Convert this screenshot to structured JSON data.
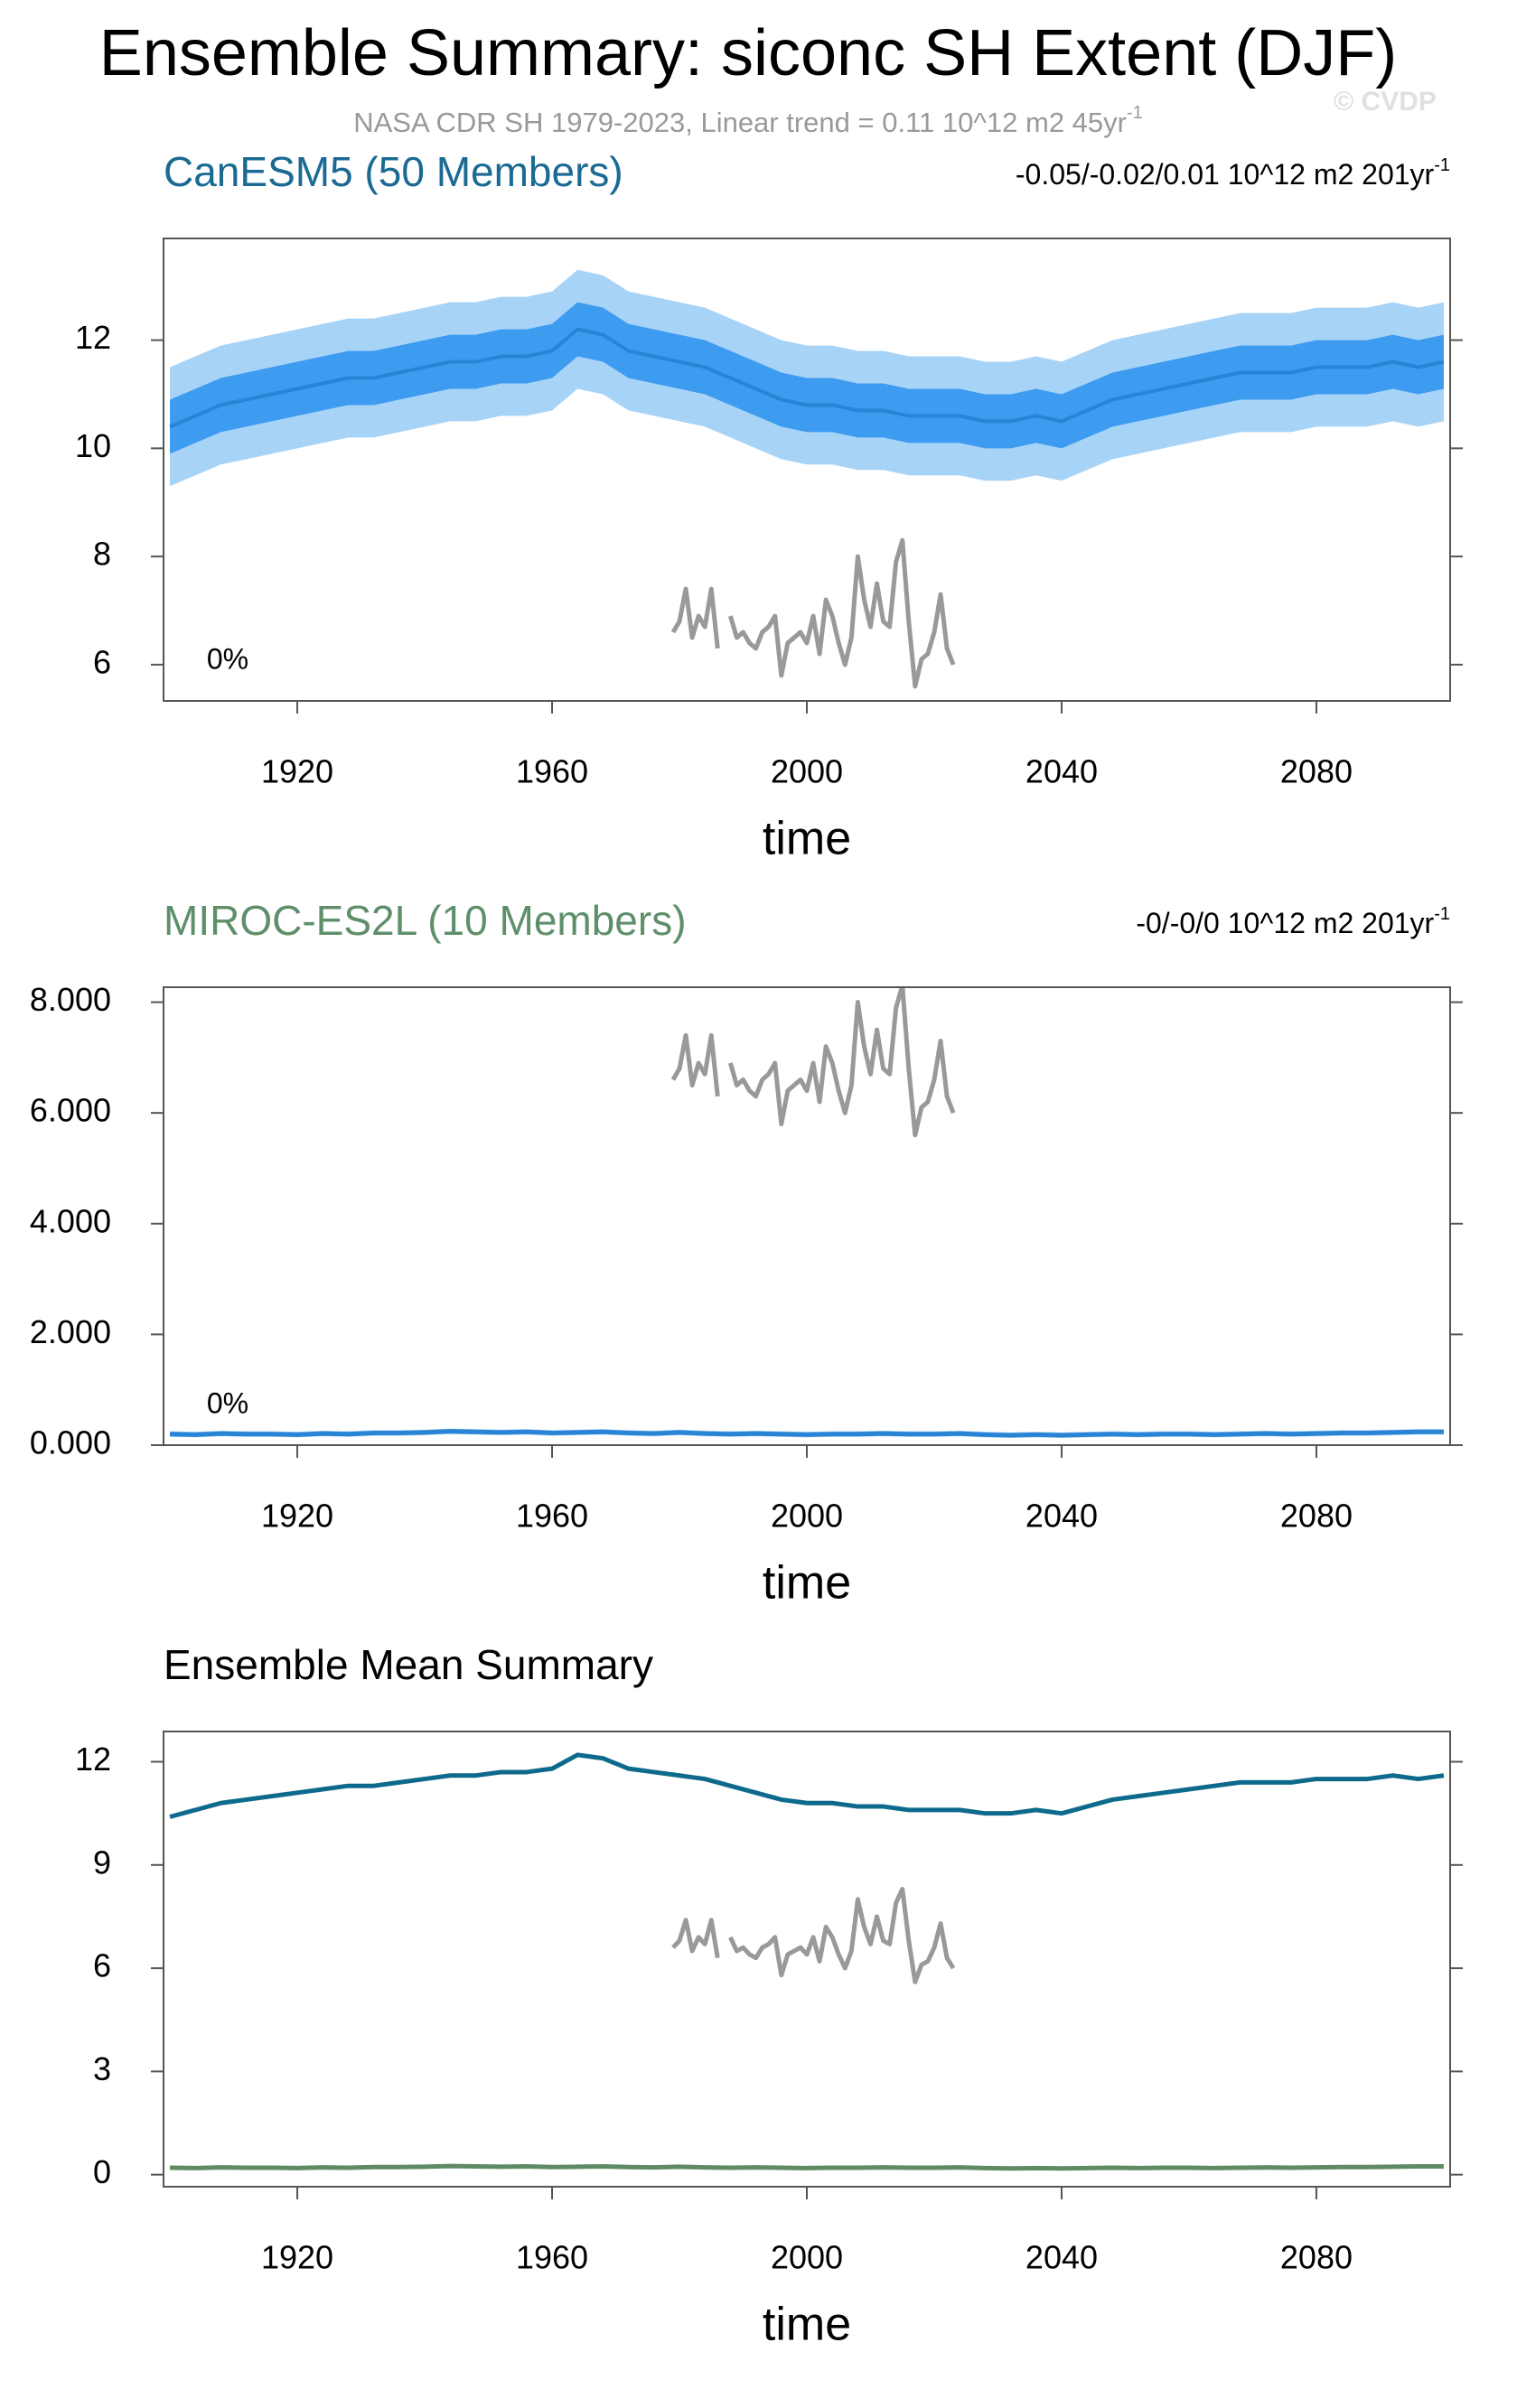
{
  "title": "Ensemble Summary: siconc SH Extent (DJF)",
  "subtitle": {
    "text": "NASA CDR SH 1979-2023, Linear trend = 0.11 10^12 m2 45yr",
    "sup": "-1"
  },
  "copyright": "© CVDP",
  "chart_data": [
    {
      "type": "line",
      "title": "CanESM5 (50 Members)",
      "title_color": "#1a6a94",
      "trend": {
        "text": "-0.05/-0.02/0.01 10^12 m2 201yr",
        "sup": "-1"
      },
      "annotation": "0%",
      "xlabel": "time",
      "xlim": [
        1899,
        2101
      ],
      "xticks": [
        1920,
        1960,
        2000,
        2040,
        2080
      ],
      "ylim": [
        5.33,
        13.88
      ],
      "yticks": [
        6,
        8,
        10,
        12
      ],
      "x": [
        1900,
        1904,
        1908,
        1912,
        1916,
        1920,
        1924,
        1928,
        1932,
        1936,
        1940,
        1944,
        1948,
        1952,
        1956,
        1960,
        1964,
        1968,
        1972,
        1976,
        1980,
        1984,
        1988,
        1992,
        1996,
        2000,
        2004,
        2008,
        2012,
        2016,
        2020,
        2024,
        2028,
        2032,
        2036,
        2040,
        2044,
        2048,
        2052,
        2056,
        2060,
        2064,
        2068,
        2072,
        2076,
        2080,
        2084,
        2088,
        2092,
        2096,
        2100
      ],
      "bands": [
        {
          "color": "#a7d3f7",
          "lower": [
            9.3,
            9.5,
            9.7,
            9.8,
            9.9,
            10.0,
            10.1,
            10.2,
            10.2,
            10.3,
            10.4,
            10.5,
            10.5,
            10.6,
            10.6,
            10.7,
            11.1,
            11.0,
            10.7,
            10.6,
            10.5,
            10.4,
            10.2,
            10.0,
            9.8,
            9.7,
            9.7,
            9.6,
            9.6,
            9.5,
            9.5,
            9.5,
            9.4,
            9.4,
            9.5,
            9.4,
            9.6,
            9.8,
            9.9,
            10.0,
            10.1,
            10.2,
            10.3,
            10.3,
            10.3,
            10.4,
            10.4,
            10.4,
            10.5,
            10.4,
            10.5
          ],
          "upper": [
            11.5,
            11.7,
            11.9,
            12.0,
            12.1,
            12.2,
            12.3,
            12.4,
            12.4,
            12.5,
            12.6,
            12.7,
            12.7,
            12.8,
            12.8,
            12.9,
            13.3,
            13.2,
            12.9,
            12.8,
            12.7,
            12.6,
            12.4,
            12.2,
            12.0,
            11.9,
            11.9,
            11.8,
            11.8,
            11.7,
            11.7,
            11.7,
            11.6,
            11.6,
            11.7,
            11.6,
            11.8,
            12.0,
            12.1,
            12.2,
            12.3,
            12.4,
            12.5,
            12.5,
            12.5,
            12.6,
            12.6,
            12.6,
            12.7,
            12.6,
            12.7
          ]
        },
        {
          "color": "#3d9bf0",
          "lower": [
            9.9,
            10.1,
            10.3,
            10.4,
            10.5,
            10.6,
            10.7,
            10.8,
            10.8,
            10.9,
            11.0,
            11.1,
            11.1,
            11.2,
            11.2,
            11.3,
            11.7,
            11.6,
            11.3,
            11.2,
            11.1,
            11.0,
            10.8,
            10.6,
            10.4,
            10.3,
            10.3,
            10.2,
            10.2,
            10.1,
            10.1,
            10.1,
            10.0,
            10.0,
            10.1,
            10.0,
            10.2,
            10.4,
            10.5,
            10.6,
            10.7,
            10.8,
            10.9,
            10.9,
            10.9,
            11.0,
            11.0,
            11.0,
            11.1,
            11.0,
            11.1
          ],
          "upper": [
            10.9,
            11.1,
            11.3,
            11.4,
            11.5,
            11.6,
            11.7,
            11.8,
            11.8,
            11.9,
            12.0,
            12.1,
            12.1,
            12.2,
            12.2,
            12.3,
            12.7,
            12.6,
            12.3,
            12.2,
            12.1,
            12.0,
            11.8,
            11.6,
            11.4,
            11.3,
            11.3,
            11.2,
            11.2,
            11.1,
            11.1,
            11.1,
            11.0,
            11.0,
            11.1,
            11.0,
            11.2,
            11.4,
            11.5,
            11.6,
            11.7,
            11.8,
            11.9,
            11.9,
            11.9,
            12.0,
            12.0,
            12.0,
            12.1,
            12.0,
            12.1
          ]
        }
      ],
      "series": [
        {
          "color": "#2a84d6",
          "width": 4,
          "values": [
            10.4,
            10.6,
            10.8,
            10.9,
            11.0,
            11.1,
            11.2,
            11.3,
            11.3,
            11.4,
            11.5,
            11.6,
            11.6,
            11.7,
            11.7,
            11.8,
            12.2,
            12.1,
            11.8,
            11.7,
            11.6,
            11.5,
            11.3,
            11.1,
            10.9,
            10.8,
            10.8,
            10.7,
            10.7,
            10.6,
            10.6,
            10.6,
            10.5,
            10.5,
            10.6,
            10.5,
            10.7,
            10.9,
            11.0,
            11.1,
            11.2,
            11.3,
            11.4,
            11.4,
            11.4,
            11.5,
            11.5,
            11.5,
            11.6,
            11.5,
            11.6
          ]
        },
        {
          "color": "#999999",
          "width": 5,
          "x": [
            1979,
            1980,
            1981,
            1982,
            1983,
            1984,
            1985,
            1986,
            1987,
            1988,
            1989,
            1990,
            1991,
            1992,
            1993,
            1994,
            1995,
            1996,
            1997,
            1998,
            1999,
            2000,
            2001,
            2002,
            2003,
            2004,
            2005,
            2006,
            2007,
            2008,
            2009,
            2010,
            2011,
            2012,
            2013,
            2014,
            2015,
            2016,
            2017,
            2018,
            2019,
            2020,
            2021,
            2022,
            2023
          ],
          "values": [
            6.6,
            6.8,
            7.4,
            6.5,
            6.9,
            6.7,
            7.4,
            6.3,
            null,
            6.9,
            6.5,
            6.6,
            6.4,
            6.3,
            6.6,
            6.7,
            6.9,
            5.8,
            6.4,
            6.5,
            6.6,
            6.4,
            6.9,
            6.2,
            7.2,
            6.9,
            6.4,
            6.0,
            6.5,
            8.0,
            7.2,
            6.7,
            7.5,
            6.8,
            6.7,
            7.9,
            8.3,
            6.8,
            5.6,
            6.1,
            6.2,
            6.6,
            7.3,
            6.3,
            6.0
          ]
        }
      ]
    },
    {
      "type": "line",
      "title": "MIROC-ES2L (10 Members)",
      "title_color": "#5e8f6a",
      "trend": {
        "text": "-0/-0/0 10^12 m2 201yr",
        "sup": "-1"
      },
      "annotation": "0%",
      "xlabel": "time",
      "xlim": [
        1899,
        2101
      ],
      "xticks": [
        1920,
        1960,
        2000,
        2040,
        2080
      ],
      "ylim": [
        0,
        8.27
      ],
      "yticks": [
        {
          "value": 0,
          "label": "0.000"
        },
        {
          "value": 2,
          "label": "2.000"
        },
        {
          "value": 4,
          "label": "4.000"
        },
        {
          "value": 6,
          "label": "6.000"
        },
        {
          "value": 8,
          "label": "8.000"
        }
      ],
      "x": [
        1900,
        1904,
        1908,
        1912,
        1916,
        1920,
        1924,
        1928,
        1932,
        1936,
        1940,
        1944,
        1948,
        1952,
        1956,
        1960,
        1964,
        1968,
        1972,
        1976,
        1980,
        1984,
        1988,
        1992,
        1996,
        2000,
        2004,
        2008,
        2012,
        2016,
        2020,
        2024,
        2028,
        2032,
        2036,
        2040,
        2044,
        2048,
        2052,
        2056,
        2060,
        2064,
        2068,
        2072,
        2076,
        2080,
        2084,
        2088,
        2092,
        2096,
        2100
      ],
      "bands": [
        {
          "color": "#a7d3f7",
          "lower": [
            0.15,
            0.14,
            0.16,
            0.15,
            0.15,
            0.14,
            0.16,
            0.15,
            0.17,
            0.17,
            0.18,
            0.2,
            0.19,
            0.18,
            0.19,
            0.17,
            0.18,
            0.19,
            0.17,
            0.16,
            0.18,
            0.16,
            0.15,
            0.16,
            0.15,
            0.14,
            0.15,
            0.15,
            0.16,
            0.15,
            0.15,
            0.16,
            0.14,
            0.13,
            0.14,
            0.13,
            0.14,
            0.15,
            0.14,
            0.15,
            0.15,
            0.14,
            0.15,
            0.16,
            0.15,
            0.16,
            0.17,
            0.17,
            0.18,
            0.19,
            0.19
          ],
          "upper": [
            0.25,
            0.24,
            0.26,
            0.25,
            0.25,
            0.24,
            0.26,
            0.25,
            0.27,
            0.27,
            0.28,
            0.3,
            0.29,
            0.28,
            0.29,
            0.27,
            0.28,
            0.29,
            0.27,
            0.26,
            0.28,
            0.26,
            0.25,
            0.26,
            0.25,
            0.24,
            0.25,
            0.25,
            0.26,
            0.25,
            0.25,
            0.26,
            0.24,
            0.23,
            0.24,
            0.23,
            0.24,
            0.25,
            0.24,
            0.25,
            0.25,
            0.24,
            0.25,
            0.26,
            0.25,
            0.26,
            0.27,
            0.27,
            0.28,
            0.29,
            0.29
          ]
        }
      ],
      "series": [
        {
          "color": "#2a84d6",
          "width": 5,
          "values": [
            0.2,
            0.19,
            0.21,
            0.2,
            0.2,
            0.19,
            0.21,
            0.2,
            0.22,
            0.22,
            0.23,
            0.25,
            0.24,
            0.23,
            0.24,
            0.22,
            0.23,
            0.24,
            0.22,
            0.21,
            0.23,
            0.21,
            0.2,
            0.21,
            0.2,
            0.19,
            0.2,
            0.2,
            0.21,
            0.2,
            0.2,
            0.21,
            0.19,
            0.18,
            0.19,
            0.18,
            0.19,
            0.2,
            0.19,
            0.2,
            0.2,
            0.19,
            0.2,
            0.21,
            0.2,
            0.21,
            0.22,
            0.22,
            0.23,
            0.24,
            0.24
          ]
        },
        {
          "color": "#999999",
          "width": 5,
          "x": [
            1979,
            1980,
            1981,
            1982,
            1983,
            1984,
            1985,
            1986,
            1987,
            1988,
            1989,
            1990,
            1991,
            1992,
            1993,
            1994,
            1995,
            1996,
            1997,
            1998,
            1999,
            2000,
            2001,
            2002,
            2003,
            2004,
            2005,
            2006,
            2007,
            2008,
            2009,
            2010,
            2011,
            2012,
            2013,
            2014,
            2015,
            2016,
            2017,
            2018,
            2019,
            2020,
            2021,
            2022,
            2023
          ],
          "values": [
            6.6,
            6.8,
            7.4,
            6.5,
            6.9,
            6.7,
            7.4,
            6.3,
            null,
            6.9,
            6.5,
            6.6,
            6.4,
            6.3,
            6.6,
            6.7,
            6.9,
            5.8,
            6.4,
            6.5,
            6.6,
            6.4,
            6.9,
            6.2,
            7.2,
            6.9,
            6.4,
            6.0,
            6.5,
            8.0,
            7.2,
            6.7,
            7.5,
            6.8,
            6.7,
            7.9,
            8.3,
            6.8,
            5.6,
            6.1,
            6.2,
            6.6,
            7.3,
            6.3,
            6.0
          ]
        }
      ]
    },
    {
      "type": "line",
      "title": "Ensemble Mean Summary",
      "title_color": "#000000",
      "xlabel": "time",
      "xlim": [
        1899,
        2101
      ],
      "xticks": [
        1920,
        1960,
        2000,
        2040,
        2080
      ],
      "ylim": [
        -0.35,
        12.88
      ],
      "yticks": [
        0,
        3,
        6,
        9,
        12
      ],
      "x": [
        1900,
        1904,
        1908,
        1912,
        1916,
        1920,
        1924,
        1928,
        1932,
        1936,
        1940,
        1944,
        1948,
        1952,
        1956,
        1960,
        1964,
        1968,
        1972,
        1976,
        1980,
        1984,
        1988,
        1992,
        1996,
        2000,
        2004,
        2008,
        2012,
        2016,
        2020,
        2024,
        2028,
        2032,
        2036,
        2040,
        2044,
        2048,
        2052,
        2056,
        2060,
        2064,
        2068,
        2072,
        2076,
        2080,
        2084,
        2088,
        2092,
        2096,
        2100
      ],
      "bands": [],
      "series": [
        {
          "color": "#0e6a8c",
          "width": 5,
          "values": [
            10.4,
            10.6,
            10.8,
            10.9,
            11.0,
            11.1,
            11.2,
            11.3,
            11.3,
            11.4,
            11.5,
            11.6,
            11.6,
            11.7,
            11.7,
            11.8,
            12.2,
            12.1,
            11.8,
            11.7,
            11.6,
            11.5,
            11.3,
            11.1,
            10.9,
            10.8,
            10.8,
            10.7,
            10.7,
            10.6,
            10.6,
            10.6,
            10.5,
            10.5,
            10.6,
            10.5,
            10.7,
            10.9,
            11.0,
            11.1,
            11.2,
            11.3,
            11.4,
            11.4,
            11.4,
            11.5,
            11.5,
            11.5,
            11.6,
            11.5,
            11.6
          ]
        },
        {
          "color": "#5e8a64",
          "width": 5,
          "values": [
            0.2,
            0.19,
            0.21,
            0.2,
            0.2,
            0.19,
            0.21,
            0.2,
            0.22,
            0.22,
            0.23,
            0.25,
            0.24,
            0.23,
            0.24,
            0.22,
            0.23,
            0.24,
            0.22,
            0.21,
            0.23,
            0.21,
            0.2,
            0.21,
            0.2,
            0.19,
            0.2,
            0.2,
            0.21,
            0.2,
            0.2,
            0.21,
            0.19,
            0.18,
            0.19,
            0.18,
            0.19,
            0.2,
            0.19,
            0.2,
            0.2,
            0.19,
            0.2,
            0.21,
            0.2,
            0.21,
            0.22,
            0.22,
            0.23,
            0.24,
            0.24
          ]
        },
        {
          "color": "#999999",
          "width": 5,
          "x": [
            1979,
            1980,
            1981,
            1982,
            1983,
            1984,
            1985,
            1986,
            1987,
            1988,
            1989,
            1990,
            1991,
            1992,
            1993,
            1994,
            1995,
            1996,
            1997,
            1998,
            1999,
            2000,
            2001,
            2002,
            2003,
            2004,
            2005,
            2006,
            2007,
            2008,
            2009,
            2010,
            2011,
            2012,
            2013,
            2014,
            2015,
            2016,
            2017,
            2018,
            2019,
            2020,
            2021,
            2022,
            2023
          ],
          "values": [
            6.6,
            6.8,
            7.4,
            6.5,
            6.9,
            6.7,
            7.4,
            6.3,
            null,
            6.9,
            6.5,
            6.6,
            6.4,
            6.3,
            6.6,
            6.7,
            6.9,
            5.8,
            6.4,
            6.5,
            6.6,
            6.4,
            6.9,
            6.2,
            7.2,
            6.9,
            6.4,
            6.0,
            6.5,
            8.0,
            7.2,
            6.7,
            7.5,
            6.8,
            6.7,
            7.9,
            8.3,
            6.8,
            5.6,
            6.1,
            6.2,
            6.6,
            7.3,
            6.3,
            6.0
          ]
        }
      ]
    }
  ]
}
